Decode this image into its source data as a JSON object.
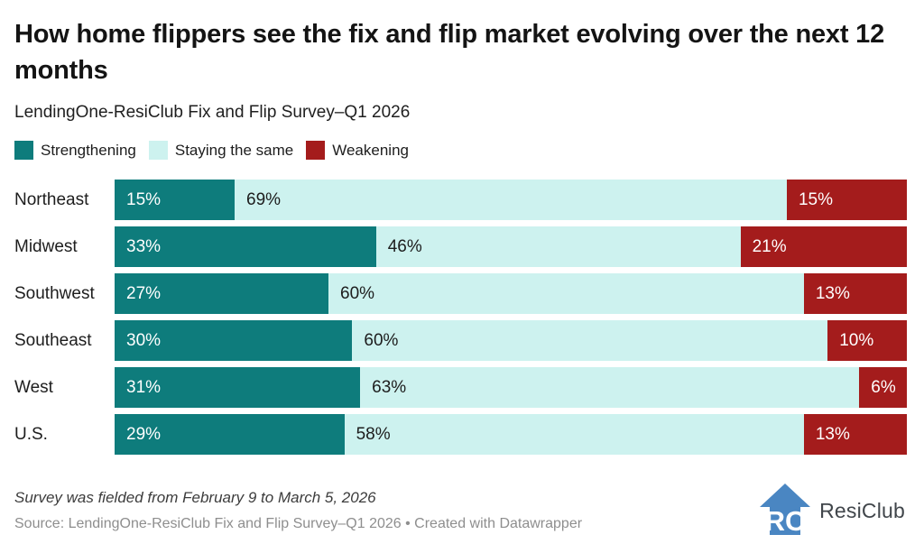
{
  "header": {
    "title": "How home flippers see the fix and flip market evolving over the next 12 months",
    "subtitle": "LendingOne-ResiClub Fix and Flip Survey–Q1 2026"
  },
  "chart_data": {
    "type": "bar",
    "orientation": "horizontal",
    "stacked": true,
    "unit": "%",
    "xlim": [
      0,
      100
    ],
    "legend_position": "top",
    "grid": false,
    "categories": [
      "Northeast",
      "Midwest",
      "Southwest",
      "Southeast",
      "West",
      "U.S."
    ],
    "series": [
      {
        "name": "Strengthening",
        "color": "#0e7c7c",
        "label_color": "#ffffff",
        "values": [
          15,
          33,
          27,
          30,
          31,
          29
        ]
      },
      {
        "name": "Staying the same",
        "color": "#cdf2ef",
        "label_color": "#1d1d1d",
        "values": [
          69,
          46,
          60,
          60,
          63,
          58
        ]
      },
      {
        "name": "Weakening",
        "color": "#a41c1c",
        "label_color": "#ffffff",
        "values": [
          15,
          21,
          13,
          10,
          6,
          13
        ]
      }
    ]
  },
  "footer": {
    "note": "Survey was fielded from February 9 to March 5, 2026",
    "source": "Source: LendingOne-ResiClub Fix and Flip Survey–Q1 2026 • Created with Datawrapper",
    "logo_monogram": "RC",
    "logo_text": "ResiClub",
    "logo_color": "#4a86c2"
  }
}
